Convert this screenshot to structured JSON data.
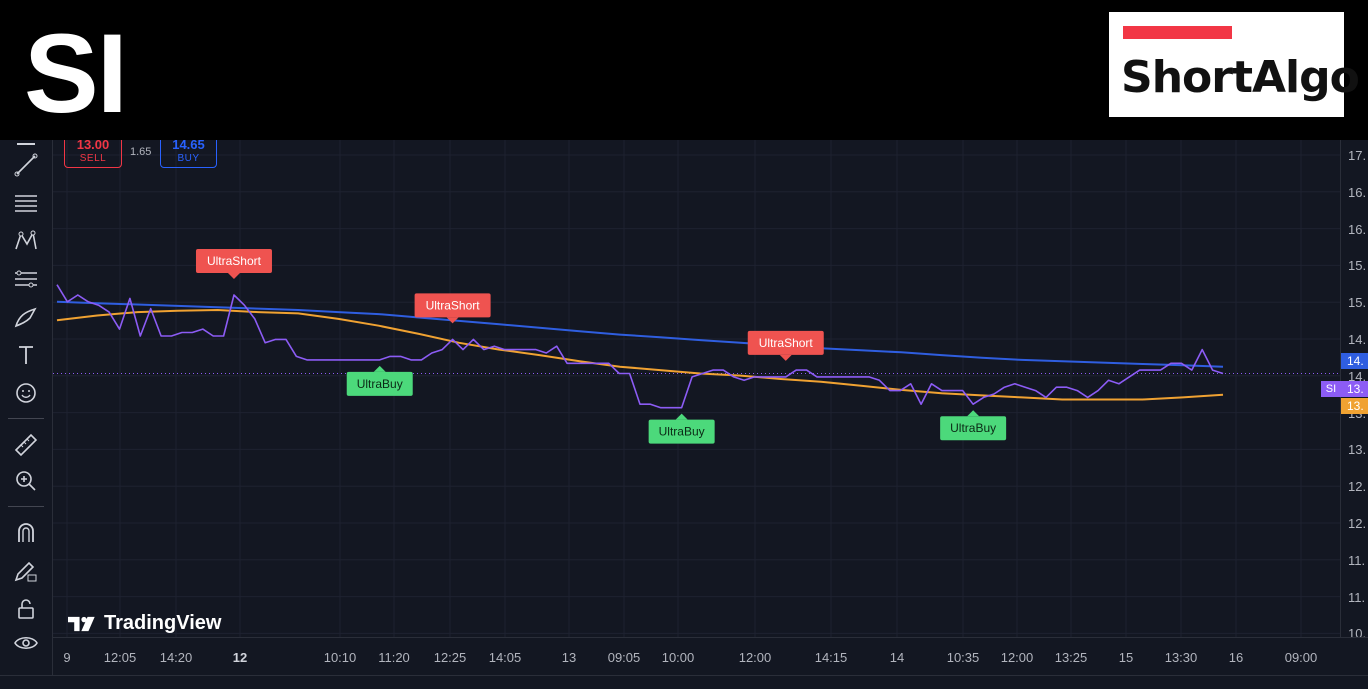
{
  "header": {
    "ticker": "SI",
    "logo_text": "ShortAlgo",
    "logo_bar_color": "#f23645"
  },
  "order_panel": {
    "sell_price": "13.00",
    "sell_label": "SELL",
    "spread": "1.65",
    "buy_price": "14.65",
    "buy_label": "BUY"
  },
  "price_axis": {
    "ticks": [
      "17.",
      "16.",
      "16.",
      "15.",
      "15.",
      "14.",
      "14.",
      "13.",
      "13.",
      "12.",
      "12.",
      "11.",
      "11.",
      "10."
    ],
    "tags": {
      "blue": "14.",
      "symbol": "SI",
      "purple": "13.",
      "orange": "13."
    }
  },
  "time_axis": {
    "ticks": [
      {
        "label": "9",
        "bold": false
      },
      {
        "label": "12:05",
        "bold": false
      },
      {
        "label": "14:20",
        "bold": false
      },
      {
        "label": "12",
        "bold": true
      },
      {
        "label": "10:10",
        "bold": false
      },
      {
        "label": "11:20",
        "bold": false
      },
      {
        "label": "12:25",
        "bold": false
      },
      {
        "label": "14:05",
        "bold": false
      },
      {
        "label": "13",
        "bold": false
      },
      {
        "label": "09:05",
        "bold": false
      },
      {
        "label": "10:00",
        "bold": false
      },
      {
        "label": "12:00",
        "bold": false
      },
      {
        "label": "14:15",
        "bold": false
      },
      {
        "label": "14",
        "bold": false
      },
      {
        "label": "10:35",
        "bold": false
      },
      {
        "label": "12:00",
        "bold": false
      },
      {
        "label": "13:25",
        "bold": false
      },
      {
        "label": "15",
        "bold": false
      },
      {
        "label": "13:30",
        "bold": false
      },
      {
        "label": "16",
        "bold": false
      },
      {
        "label": "09:00",
        "bold": false
      }
    ]
  },
  "watermark": "TradingView",
  "colors": {
    "price_line": "#8c5cf5",
    "blue_ma": "#2f5ee0",
    "orange_ma": "#f0a232",
    "sell": "#f23645",
    "buy": "#2962ff",
    "ultra_short": "#ef5350",
    "ultra_buy": "#4cd97b"
  },
  "toolbar_icons": [
    "crosshair-icon",
    "trend-line-icon",
    "horizontal-lines-icon",
    "pattern-icon",
    "fib-icon",
    "brush-icon",
    "text-icon",
    "emoji-icon",
    "ruler-icon",
    "zoom-in-icon",
    "magnet-icon",
    "lock-draw-icon",
    "lock-icon",
    "eye-icon"
  ],
  "chart_data": {
    "type": "line",
    "ylim": [
      10,
      17
    ],
    "series": [
      {
        "values": [
          15.1,
          14.85,
          14.95,
          14.85,
          14.8,
          14.7,
          14.45,
          14.9,
          14.35,
          14.75,
          14.35,
          14.35,
          14.4,
          14.4,
          14.45,
          14.35,
          14.35,
          14.95,
          14.8,
          14.6,
          14.25,
          14.3,
          14.3,
          14.05,
          14.0,
          14.0,
          14.0,
          14.0,
          14.0,
          14.0,
          14.0,
          14.0,
          14.05,
          14.05,
          14.0,
          14.0,
          14.1,
          14.15,
          14.3,
          14.15,
          14.3,
          14.15,
          14.2,
          14.15,
          14.15,
          14.15,
          14.15,
          14.1,
          14.2,
          13.95,
          13.95,
          13.95,
          13.95,
          13.95,
          13.8,
          13.8,
          13.35,
          13.35,
          13.3,
          13.3,
          13.3,
          13.75,
          13.8,
          13.85,
          13.85,
          13.75,
          13.7,
          13.75,
          13.75,
          13.75,
          13.75,
          13.85,
          13.85,
          13.75,
          13.75,
          13.75,
          13.75,
          13.75,
          13.75,
          13.7,
          13.55,
          13.55,
          13.65,
          13.35,
          13.65,
          13.55,
          13.55,
          13.55,
          13.35,
          13.45,
          13.5,
          13.6,
          13.65,
          13.6,
          13.55,
          13.45,
          13.6,
          13.6,
          13.55,
          13.45,
          13.55,
          13.7,
          13.65,
          13.75,
          13.85,
          13.85,
          13.85,
          13.95,
          13.95,
          13.85,
          14.15,
          13.85,
          13.8
        ]
      },
      {
        "values": [
          14.85,
          14.83,
          14.81,
          14.79,
          14.77,
          14.75,
          14.73,
          14.7,
          14.67,
          14.62,
          14.57,
          14.52,
          14.47,
          14.42,
          14.37,
          14.33,
          14.29,
          14.25,
          14.21,
          14.17,
          14.14,
          14.11,
          14.07,
          14.03,
          14.0,
          13.98,
          13.96,
          13.94,
          13.92,
          13.9
        ]
      },
      {
        "values": [
          14.58,
          14.65,
          14.7,
          14.72,
          14.73,
          14.7,
          14.68,
          14.6,
          14.5,
          14.38,
          14.25,
          14.15,
          14.07,
          13.98,
          13.9,
          13.85,
          13.8,
          13.77,
          13.72,
          13.68,
          13.62,
          13.56,
          13.51,
          13.48,
          13.45,
          13.42,
          13.42,
          13.42,
          13.45,
          13.49
        ]
      }
    ],
    "signals": [
      {
        "label": "UltraShort",
        "kind": "short",
        "index": 17
      },
      {
        "label": "UltraBuy",
        "kind": "buy",
        "index": 31
      },
      {
        "label": "UltraShort",
        "kind": "short",
        "index": 38
      },
      {
        "label": "UltraBuy",
        "kind": "buy",
        "index": 60
      },
      {
        "label": "UltraShort",
        "kind": "short",
        "index": 70
      },
      {
        "label": "UltraBuy",
        "kind": "buy",
        "index": 88
      }
    ]
  }
}
